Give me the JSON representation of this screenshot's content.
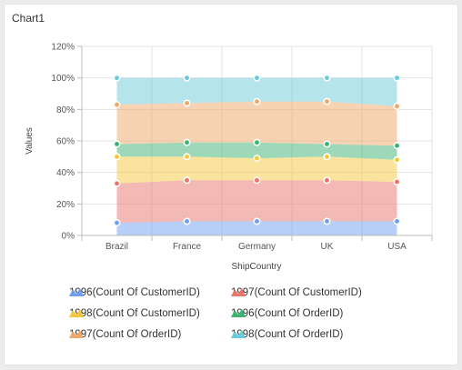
{
  "window": {
    "title": "Chart1"
  },
  "chart_data": {
    "type": "area",
    "stacking": "100%",
    "xlabel": "ShipCountry",
    "ylabel": "Values",
    "categories": [
      "Brazil",
      "France",
      "Germany",
      "UK",
      "USA"
    ],
    "y_ticks": [
      "0%",
      "20%",
      "40%",
      "60%",
      "80%",
      "100%",
      "120%"
    ],
    "ylim": [
      0,
      120
    ],
    "grid": true,
    "legend_position": "bottom",
    "series": [
      {
        "name": "1996(Count Of CustomerID)",
        "color": "#6fa0ee",
        "values": [
          8,
          9,
          9,
          9,
          9
        ]
      },
      {
        "name": "1997(Count Of CustomerID)",
        "color": "#e8746c",
        "values": [
          25,
          26,
          26,
          26,
          25
        ]
      },
      {
        "name": "1998(Count Of CustomerID)",
        "color": "#f5c83c",
        "values": [
          17,
          15,
          14,
          15,
          14
        ]
      },
      {
        "name": "1996(Count Of OrderID)",
        "color": "#3cb371",
        "values": [
          8,
          9,
          10,
          8,
          9
        ]
      },
      {
        "name": "1997(Count Of OrderID)",
        "color": "#f0a868",
        "values": [
          25,
          25,
          26,
          27,
          25
        ]
      },
      {
        "name": "1998(Count Of OrderID)",
        "color": "#6ccbd8",
        "values": [
          17,
          16,
          15,
          15,
          18
        ]
      }
    ]
  }
}
